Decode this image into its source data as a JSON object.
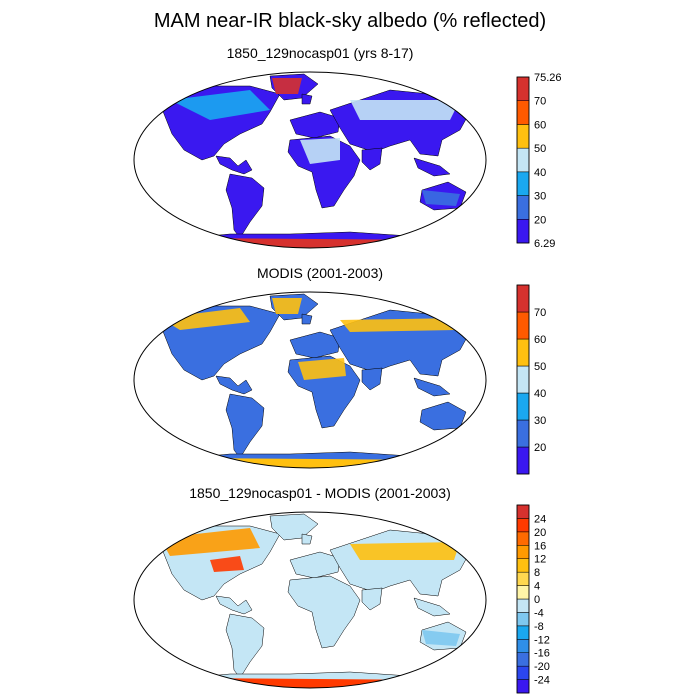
{
  "title": "MAM near-IR black-sky albedo (% reflected)",
  "colors": {
    "ocean": "#ffffff",
    "border": "#000000"
  },
  "panels": [
    {
      "title": "1850_129nocasp01 (yrs 8-17)",
      "colorbar": {
        "colors": [
          "#3a18f0",
          "#3a6fe0",
          "#1aa8f0",
          "#c4e6f5",
          "#ffc010",
          "#ff5a00",
          "#d6312e"
        ],
        "labels": [
          "6.29",
          "20",
          "30",
          "40",
          "50",
          "60",
          "70",
          "75.26"
        ],
        "label_style": "edges"
      }
    },
    {
      "title": "MODIS (2001-2003)",
      "colorbar": {
        "colors": [
          "#3a18f0",
          "#3a6fe0",
          "#1aa8f0",
          "#c4e6f5",
          "#ffc010",
          "#ff5a00",
          "#d6312e"
        ],
        "labels": [
          "",
          "20",
          "30",
          "40",
          "50",
          "60",
          "70",
          ""
        ],
        "label_style": "edges"
      }
    },
    {
      "title": "1850_129nocasp01 - MODIS (2001-2003)",
      "colorbar": {
        "colors": [
          "#3a18f0",
          "#2b46ee",
          "#3a6fe0",
          "#2f8fe8",
          "#1aa8f0",
          "#7ec8f0",
          "#c4e6f5",
          "#fff5a8",
          "#ffd850",
          "#ffc010",
          "#ff9a00",
          "#ff6a00",
          "#ff3a00",
          "#d6312e"
        ],
        "labels": [
          "-24",
          "-20",
          "-16",
          "-12",
          "-8",
          "-4",
          "0",
          "4",
          "8",
          "12",
          "16",
          "20",
          "24"
        ],
        "label_style": "interior"
      }
    }
  ]
}
